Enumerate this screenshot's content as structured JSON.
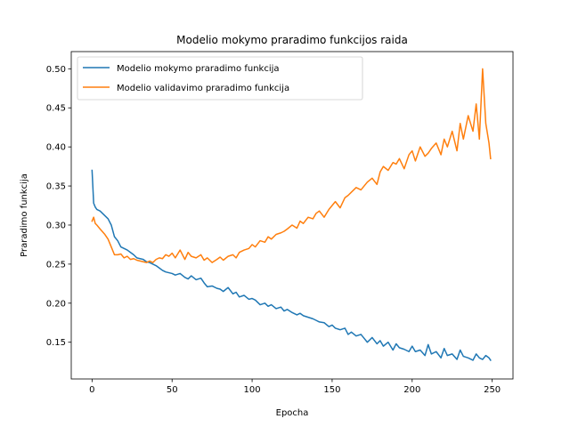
{
  "chart_data": {
    "type": "line",
    "title": "Modelio mokymo praradimo funkcijos raida",
    "xlabel": "Epocha",
    "ylabel": "Praradimo funkcija",
    "xlim": [
      -13,
      263
    ],
    "ylim": [
      0.103,
      0.522
    ],
    "xticks": [
      0,
      50,
      100,
      150,
      200,
      250
    ],
    "yticks": [
      0.15,
      0.2,
      0.25,
      0.3,
      0.35,
      0.4,
      0.45,
      0.5
    ],
    "ytick_labels": [
      "0.15",
      "0.20",
      "0.25",
      "0.30",
      "0.35",
      "0.40",
      "0.45",
      "0.50"
    ],
    "legend_position": "upper-left",
    "grid": false,
    "series": [
      {
        "name": "Modelio mokymo praradimo funkcija",
        "color": "#1f77b4",
        "x": [
          0,
          1,
          2,
          3,
          5,
          8,
          10,
          12,
          14,
          16,
          18,
          20,
          22,
          24,
          26,
          28,
          30,
          32,
          34,
          36,
          38,
          40,
          42,
          44,
          46,
          48,
          50,
          52,
          55,
          58,
          60,
          62,
          65,
          68,
          70,
          72,
          75,
          78,
          80,
          82,
          85,
          88,
          90,
          92,
          95,
          98,
          100,
          102,
          105,
          108,
          110,
          112,
          115,
          118,
          120,
          122,
          125,
          128,
          130,
          132,
          135,
          138,
          140,
          142,
          145,
          148,
          150,
          152,
          155,
          158,
          160,
          162,
          165,
          168,
          170,
          172,
          175,
          178,
          180,
          182,
          185,
          188,
          190,
          192,
          195,
          198,
          200,
          202,
          205,
          208,
          210,
          212,
          215,
          218,
          220,
          222,
          225,
          228,
          230,
          232,
          235,
          238,
          240,
          242,
          244,
          246,
          248,
          249
        ],
        "y": [
          0.37,
          0.328,
          0.323,
          0.32,
          0.318,
          0.312,
          0.308,
          0.3,
          0.285,
          0.28,
          0.272,
          0.27,
          0.268,
          0.265,
          0.262,
          0.258,
          0.257,
          0.256,
          0.253,
          0.252,
          0.25,
          0.248,
          0.245,
          0.242,
          0.24,
          0.239,
          0.238,
          0.236,
          0.238,
          0.233,
          0.231,
          0.235,
          0.23,
          0.232,
          0.226,
          0.221,
          0.222,
          0.219,
          0.218,
          0.215,
          0.22,
          0.212,
          0.214,
          0.208,
          0.21,
          0.205,
          0.206,
          0.204,
          0.198,
          0.2,
          0.196,
          0.198,
          0.193,
          0.195,
          0.19,
          0.192,
          0.188,
          0.185,
          0.187,
          0.184,
          0.182,
          0.18,
          0.178,
          0.176,
          0.175,
          0.17,
          0.172,
          0.168,
          0.166,
          0.168,
          0.16,
          0.163,
          0.158,
          0.16,
          0.155,
          0.15,
          0.156,
          0.148,
          0.152,
          0.145,
          0.15,
          0.14,
          0.148,
          0.143,
          0.141,
          0.138,
          0.145,
          0.138,
          0.14,
          0.133,
          0.147,
          0.135,
          0.138,
          0.13,
          0.142,
          0.133,
          0.135,
          0.128,
          0.14,
          0.132,
          0.13,
          0.127,
          0.135,
          0.13,
          0.128,
          0.133,
          0.13,
          0.127
        ]
      },
      {
        "name": "Modelio validavimo praradimo funkcija",
        "color": "#ff7f0e",
        "x": [
          0,
          1,
          2,
          3,
          5,
          8,
          10,
          12,
          14,
          16,
          18,
          20,
          22,
          24,
          26,
          28,
          30,
          32,
          34,
          36,
          38,
          40,
          42,
          44,
          46,
          48,
          50,
          52,
          55,
          58,
          60,
          62,
          65,
          68,
          70,
          72,
          75,
          78,
          80,
          82,
          85,
          88,
          90,
          92,
          95,
          98,
          100,
          102,
          105,
          108,
          110,
          112,
          115,
          118,
          120,
          122,
          125,
          128,
          130,
          132,
          135,
          138,
          140,
          142,
          145,
          148,
          150,
          152,
          155,
          158,
          160,
          162,
          165,
          168,
          170,
          172,
          175,
          178,
          180,
          182,
          185,
          188,
          190,
          192,
          195,
          198,
          200,
          202,
          205,
          208,
          210,
          212,
          215,
          218,
          220,
          222,
          225,
          228,
          230,
          232,
          235,
          238,
          240,
          242,
          244,
          246,
          248,
          249
        ],
        "y": [
          0.305,
          0.31,
          0.302,
          0.3,
          0.295,
          0.288,
          0.282,
          0.272,
          0.262,
          0.262,
          0.263,
          0.258,
          0.26,
          0.256,
          0.257,
          0.255,
          0.254,
          0.253,
          0.252,
          0.254,
          0.252,
          0.256,
          0.258,
          0.257,
          0.262,
          0.26,
          0.264,
          0.258,
          0.268,
          0.256,
          0.265,
          0.26,
          0.258,
          0.262,
          0.255,
          0.258,
          0.252,
          0.256,
          0.259,
          0.255,
          0.26,
          0.262,
          0.258,
          0.265,
          0.268,
          0.27,
          0.275,
          0.272,
          0.28,
          0.278,
          0.285,
          0.282,
          0.288,
          0.29,
          0.292,
          0.295,
          0.3,
          0.296,
          0.305,
          0.302,
          0.31,
          0.308,
          0.315,
          0.318,
          0.31,
          0.32,
          0.325,
          0.33,
          0.322,
          0.335,
          0.338,
          0.342,
          0.348,
          0.345,
          0.35,
          0.355,
          0.36,
          0.352,
          0.368,
          0.375,
          0.37,
          0.38,
          0.378,
          0.385,
          0.372,
          0.39,
          0.395,
          0.382,
          0.4,
          0.388,
          0.392,
          0.398,
          0.405,
          0.39,
          0.41,
          0.4,
          0.42,
          0.395,
          0.43,
          0.41,
          0.44,
          0.42,
          0.455,
          0.41,
          0.5,
          0.43,
          0.405,
          0.385
        ]
      }
    ]
  }
}
